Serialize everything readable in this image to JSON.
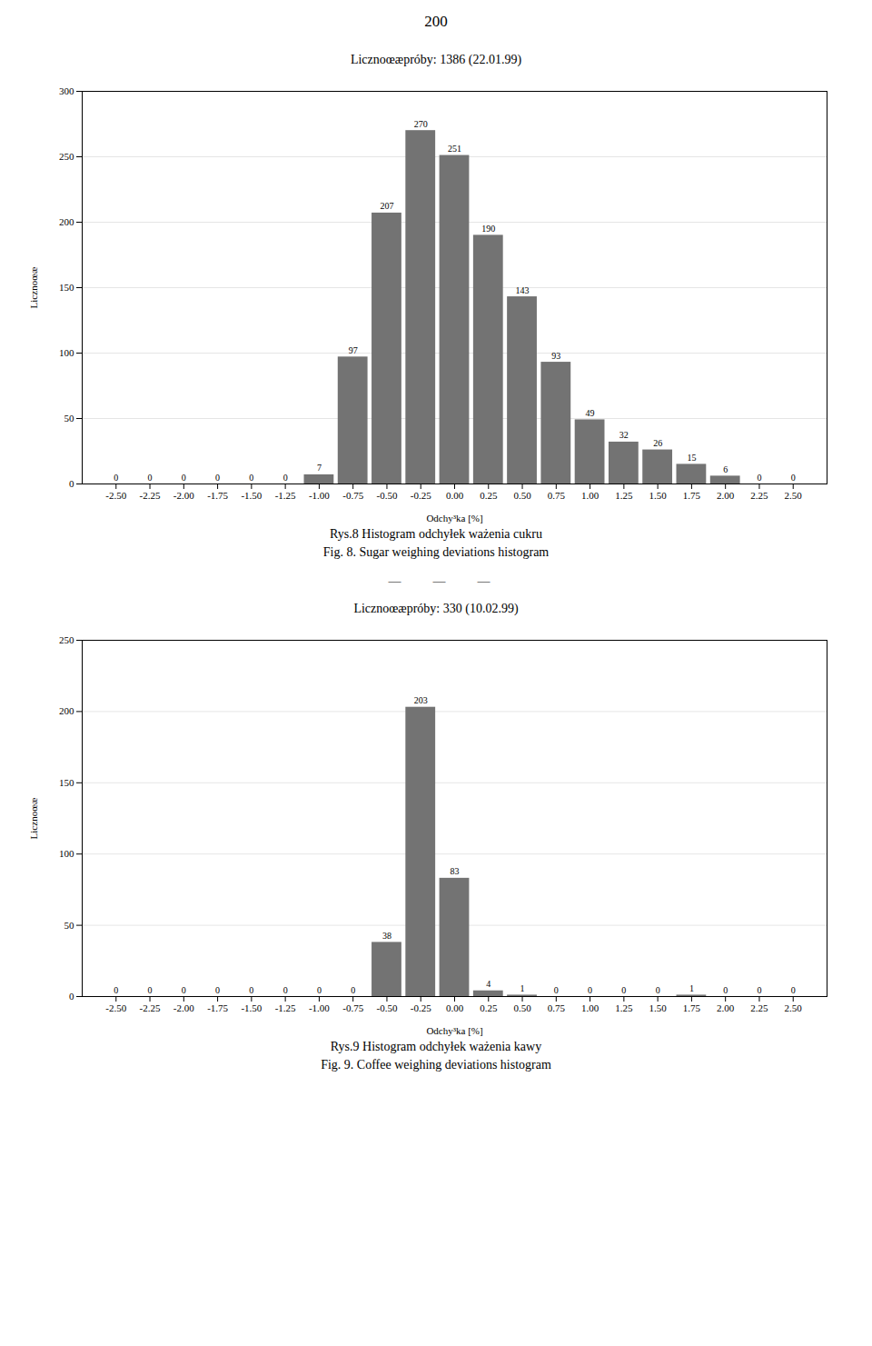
{
  "annotations": [
    "200",
    "  —          —          —"
  ],
  "chart_data": [
    {
      "type": "bar",
      "title": "Licznoœæpróby: 1386 (22.01.99)",
      "xlabel": "Odchy³ka [%]",
      "ylabel": "Licznoœæ",
      "x": [
        -2.5,
        -2.25,
        -2.0,
        -1.75,
        -1.5,
        -1.25,
        -1.0,
        -0.75,
        -0.5,
        -0.25,
        0.0,
        0.25,
        0.5,
        0.75,
        1.0,
        1.25,
        1.5,
        1.75,
        2.0,
        2.25,
        2.5
      ],
      "values": [
        0,
        0,
        0,
        0,
        0,
        0,
        7,
        97,
        207,
        270,
        251,
        190,
        143,
        93,
        49,
        32,
        26,
        15,
        6,
        0,
        0
      ],
      "color": "#737373",
      "xlim": [
        -2.75,
        2.75
      ],
      "xticks": [
        {
          "value": -2.5,
          "label": "-2.50"
        },
        {
          "value": -2.25,
          "label": "-2.25"
        },
        {
          "value": -2.0,
          "label": "-2.00"
        },
        {
          "value": -1.75,
          "label": "-1.75"
        },
        {
          "value": -1.5,
          "label": "-1.50"
        },
        {
          "value": -1.25,
          "label": "-1.25"
        },
        {
          "value": -1.0,
          "label": "-1.00"
        },
        {
          "value": -0.75,
          "label": "-0.75"
        },
        {
          "value": -0.5,
          "label": "-0.50"
        },
        {
          "value": -0.25,
          "label": "-0.25"
        },
        {
          "value": 0.0,
          "label": "0.00"
        },
        {
          "value": 0.25,
          "label": "0.25"
        },
        {
          "value": 0.5,
          "label": "0.50"
        },
        {
          "value": 0.75,
          "label": "0.75"
        },
        {
          "value": 1.0,
          "label": "1.00"
        },
        {
          "value": 1.25,
          "label": "1.25"
        },
        {
          "value": 1.5,
          "label": "1.50"
        },
        {
          "value": 1.75,
          "label": "1.75"
        },
        {
          "value": 2.0,
          "label": "2.00"
        },
        {
          "value": 2.25,
          "label": "2.25"
        },
        {
          "value": 2.5,
          "label": "2.50"
        }
      ],
      "ylim": [
        0,
        300
      ],
      "yticks": [
        0,
        50,
        100,
        150,
        200,
        250,
        300
      ],
      "grid": true,
      "data_labels": true,
      "captions": [
        "Rys.8  Histogram  odchyłek  ważenia  cukru",
        "Fig.  8.  Sugar  weighing  deviations  histogram"
      ]
    },
    {
      "type": "bar",
      "title": "Licznoœæpróby: 330 (10.02.99)",
      "xlabel": "Odchy³ka [%]",
      "ylabel": "Licznoœæ",
      "x": [
        -2.5,
        -2.25,
        -2.0,
        -1.75,
        -1.5,
        -1.25,
        -1.0,
        -0.75,
        -0.5,
        -0.25,
        0.0,
        0.25,
        0.5,
        0.75,
        1.0,
        1.25,
        1.5,
        1.75,
        2.0,
        2.25,
        2.5
      ],
      "values": [
        0,
        0,
        0,
        0,
        0,
        0,
        0,
        0,
        38,
        203,
        83,
        4,
        1,
        0,
        0,
        0,
        0,
        1,
        0,
        0,
        0
      ],
      "color": "#737373",
      "xlim": [
        -2.75,
        2.75
      ],
      "xticks": [
        {
          "value": -2.5,
          "label": "-2.50"
        },
        {
          "value": -2.25,
          "label": "-2.25"
        },
        {
          "value": -2.0,
          "label": "-2.00"
        },
        {
          "value": -1.75,
          "label": "-1.75"
        },
        {
          "value": -1.5,
          "label": "-1.50"
        },
        {
          "value": -1.25,
          "label": "-1.25"
        },
        {
          "value": -1.0,
          "label": "-1.00"
        },
        {
          "value": -0.75,
          "label": "-0.75"
        },
        {
          "value": -0.5,
          "label": "-0.50"
        },
        {
          "value": -0.25,
          "label": "-0.25"
        },
        {
          "value": 0.0,
          "label": "0.00"
        },
        {
          "value": 0.25,
          "label": "0.25"
        },
        {
          "value": 0.5,
          "label": "0.50"
        },
        {
          "value": 0.75,
          "label": "0.75"
        },
        {
          "value": 1.0,
          "label": "1.00"
        },
        {
          "value": 1.25,
          "label": "1.25"
        },
        {
          "value": 1.5,
          "label": "1.50"
        },
        {
          "value": 1.75,
          "label": "1.75"
        },
        {
          "value": 2.0,
          "label": "2.00"
        },
        {
          "value": 2.25,
          "label": "2.25"
        },
        {
          "value": 2.5,
          "label": "2.50"
        }
      ],
      "ylim": [
        0,
        250
      ],
      "yticks": [
        0,
        50,
        100,
        150,
        200,
        250
      ],
      "grid": true,
      "data_labels": true,
      "captions": [
        "Rys.9  Histogram  odchyłek  ważenia  kawy",
        "Fig.  9.  Coffee  weighing  deviations  histogram"
      ]
    }
  ]
}
